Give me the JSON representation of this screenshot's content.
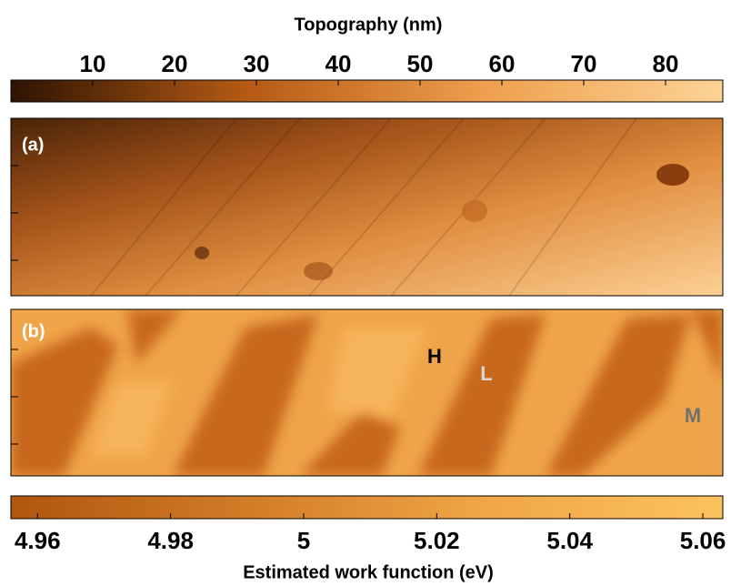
{
  "chart_data": {
    "type": "heatmap",
    "title": "Topography (nm)",
    "xlabel": "Estimated work function (eV)",
    "panel_labels": [
      "(a)",
      "(b)"
    ],
    "annotations": [
      "H",
      "L",
      "M"
    ],
    "colorbars": [
      {
        "xlim": [
          0,
          87
        ],
        "xticks": [
          10,
          20,
          30,
          40,
          50,
          60,
          70,
          80
        ],
        "colors": [
          "#2e1403",
          "#b65a14",
          "#ef9f4e",
          "#fdd395"
        ]
      },
      {
        "xlim": [
          4.956,
          5.063
        ],
        "xticks": [
          4.96,
          4.98,
          5,
          5.02,
          5.04,
          5.06
        ],
        "colors": [
          "#b0560e",
          "#d27c28",
          "#f0a645",
          "#fcc25e"
        ]
      }
    ]
  }
}
